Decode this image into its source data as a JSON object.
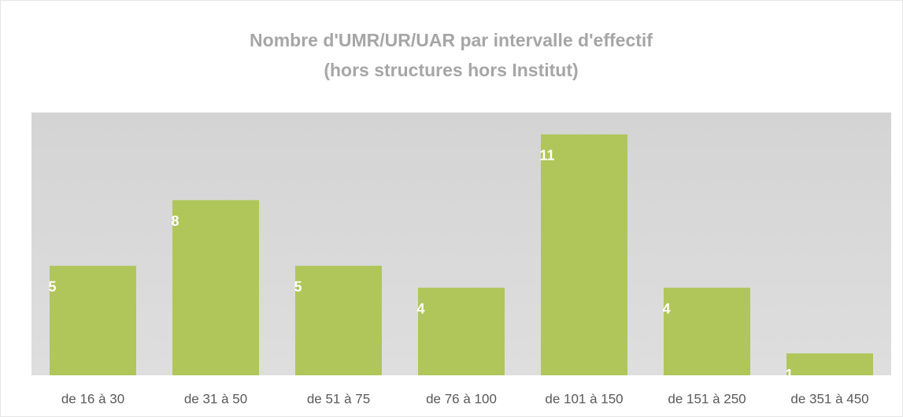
{
  "chart_data": {
    "type": "bar",
    "title": [
      "Nombre d'UMR/UR/UAR par intervalle d'effectif",
      "(hors structures hors Institut)"
    ],
    "categories": [
      "de 16 à 30",
      "de 31 à 50",
      "de 51 à 75",
      "de 76 à 100",
      "de 101 à 150",
      "de 151 à 250",
      "de 351 à 450"
    ],
    "values": [
      5,
      8,
      5,
      4,
      11,
      4,
      1
    ],
    "color": "#b0c65a",
    "ylim": [
      0,
      12
    ]
  }
}
